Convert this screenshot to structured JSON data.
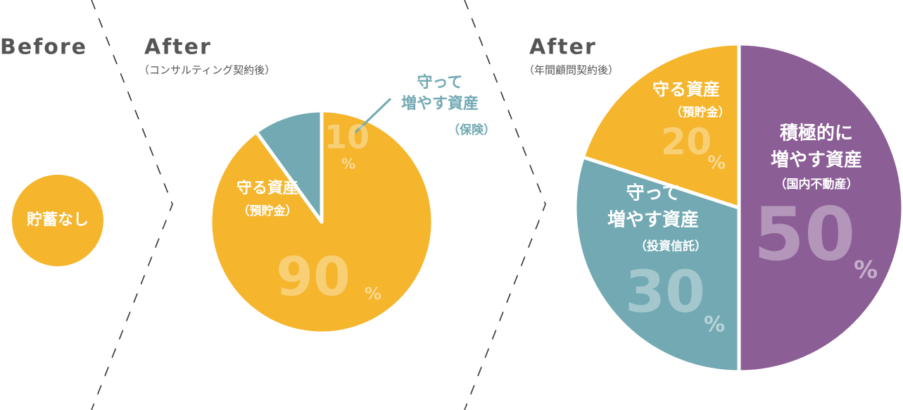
{
  "before": {
    "title": "Before",
    "label": "貯蓄なし",
    "color": "#F5B52C"
  },
  "chart_data": [
    {
      "type": "pie",
      "title": "After",
      "subtitle": "（コンサルティング契約後）",
      "unit": "%",
      "labels": [
        [
          "守る資産"
        ],
        [
          "守って",
          "増やす資産"
        ]
      ],
      "notes": [
        "（預貯金）",
        "（保険）"
      ],
      "values": [
        90,
        10
      ],
      "colors": [
        "#F5B52C",
        "#72A9B3"
      ]
    },
    {
      "type": "pie",
      "title": "After",
      "subtitle": "（年間顧問契約後）",
      "unit": "%",
      "labels": [
        [
          "積極的に",
          "増やす資産"
        ],
        [
          "守って",
          "増やす資産"
        ],
        [
          "守る資産"
        ]
      ],
      "notes": [
        "（国内不動産）",
        "（投資信託）",
        "（預貯金）"
      ],
      "values": [
        50,
        30,
        20
      ],
      "colors": [
        "#8C5E96",
        "#72A9B3",
        "#F5B52C"
      ]
    }
  ]
}
